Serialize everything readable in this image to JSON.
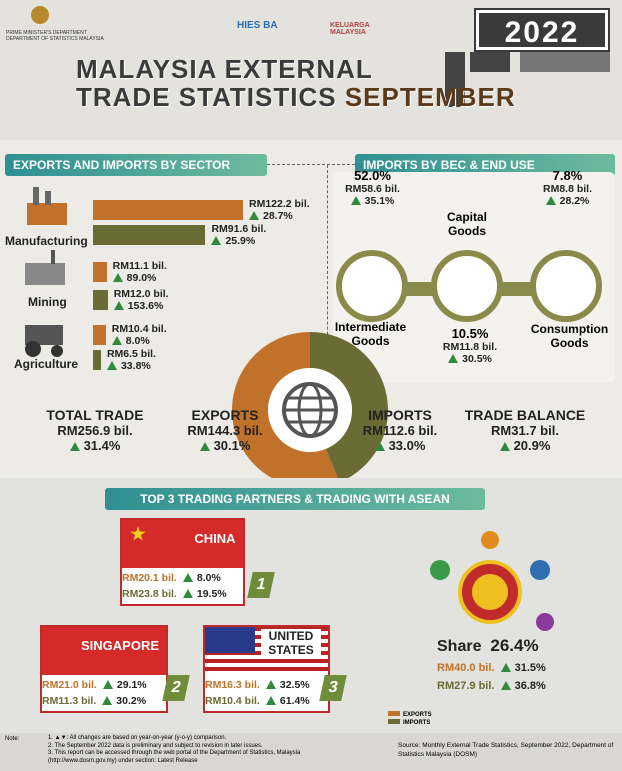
{
  "header": {
    "agency": "PRIME MINISTER'S DEPARTMENT",
    "agency2": "DEPARTMENT OF STATISTICS MALAYSIA",
    "logo1": "HIES BA",
    "logo2": "KELUARGA MALAYSIA",
    "year": "2022",
    "title_line1": "MALAYSIA EXTERNAL",
    "title_line2": "TRADE STATISTICS",
    "month": "SEPTEMBER"
  },
  "sectors": {
    "title": "EXPORTS AND IMPORTS BY SECTOR",
    "items": [
      {
        "name": "Manufacturing",
        "exports": {
          "value": 122.2,
          "label": "RM122.2 bil."
        },
        "exports_change": "28.7%",
        "imports": {
          "value": 91.6,
          "label": "RM91.6 bil."
        },
        "imports_change": "25.9%"
      },
      {
        "name": "Mining",
        "exports": {
          "value": 11.1,
          "label": "RM11.1 bil."
        },
        "exports_change": "89.0%",
        "imports": {
          "value": 12.0,
          "label": "RM12.0 bil."
        },
        "imports_change": "153.6%"
      },
      {
        "name": "Agriculture",
        "exports": {
          "value": 10.4,
          "label": "RM10.4 bil."
        },
        "exports_change": "8.0%",
        "imports": {
          "value": 6.5,
          "label": "RM6.5 bil."
        },
        "imports_change": "33.8%"
      }
    ]
  },
  "bec": {
    "title": "IMPORTS BY BEC & END USE",
    "items": [
      {
        "name": "Intermediate Goods",
        "share": "52.0%",
        "value": "RM58.6 bil.",
        "change": "35.1%"
      },
      {
        "name": "Capital Goods",
        "share": "10.5%",
        "value": "RM11.8 bil.",
        "change": "30.5%"
      },
      {
        "name": "Consumption Goods",
        "share": "7.8%",
        "value": "RM8.8 bil.",
        "change": "28.2%"
      }
    ]
  },
  "summary": [
    {
      "label": "TOTAL TRADE",
      "value": {
        "value": 256.9,
        "label": "RM256.9 bil."
      },
      "change": "31.4%"
    },
    {
      "label": "EXPORTS",
      "value": {
        "value": 144.3,
        "label": "RM144.3 bil."
      },
      "change": "30.1%"
    },
    {
      "label": "IMPORTS",
      "value": {
        "value": 112.6,
        "label": "RM112.6 bil."
      },
      "change": "33.0%"
    },
    {
      "label": "TRADE BALANCE",
      "value": {
        "value": 31.7,
        "label": "RM31.7 bil."
      },
      "change": "20.9%"
    }
  ],
  "partners": {
    "title": "TOP 3 TRADING PARTNERS & TRADING WITH ASEAN",
    "items": [
      {
        "rank": "1",
        "name": "CHINA",
        "exports": "RM20.1 bil.",
        "exports_change": "8.0%",
        "imports": "RM23.8 bil.",
        "imports_change": "19.5%"
      },
      {
        "rank": "2",
        "name": "SINGAPORE",
        "exports": "RM21.0 bil.",
        "exports_change": "29.1%",
        "imports": "RM11.3 bil.",
        "imports_change": "30.2%"
      },
      {
        "rank": "3",
        "name": "UNITED STATES",
        "exports": "RM16.3 bil.",
        "exports_change": "32.5%",
        "imports": "RM10.4 bil.",
        "imports_change": "61.4%"
      }
    ],
    "asean": {
      "share_label": "Share",
      "share": "26.4%",
      "exports": "RM40.0 bil.",
      "exports_change": "31.5%",
      "imports": "RM27.9 bil.",
      "imports_change": "36.8%"
    }
  },
  "legend": [
    "EXPORTS",
    "IMPORTS"
  ],
  "footer": {
    "note_label": "Note:",
    "notes": [
      "1. ▲▼: All changes are based on year-on-year (y-o-y) comparison.",
      "2. The September 2022 data is preliminary and subject to revision in later issues.",
      "3. This report can be accessed through the web portal of the Department of Statistics, Malaysia (http://www.dosm.gov.my) under section: Latest Release"
    ],
    "source": "Source: Monthly External Trade Statistics, September 2022, Department of Statistics Malaysia (DOSM)"
  }
}
